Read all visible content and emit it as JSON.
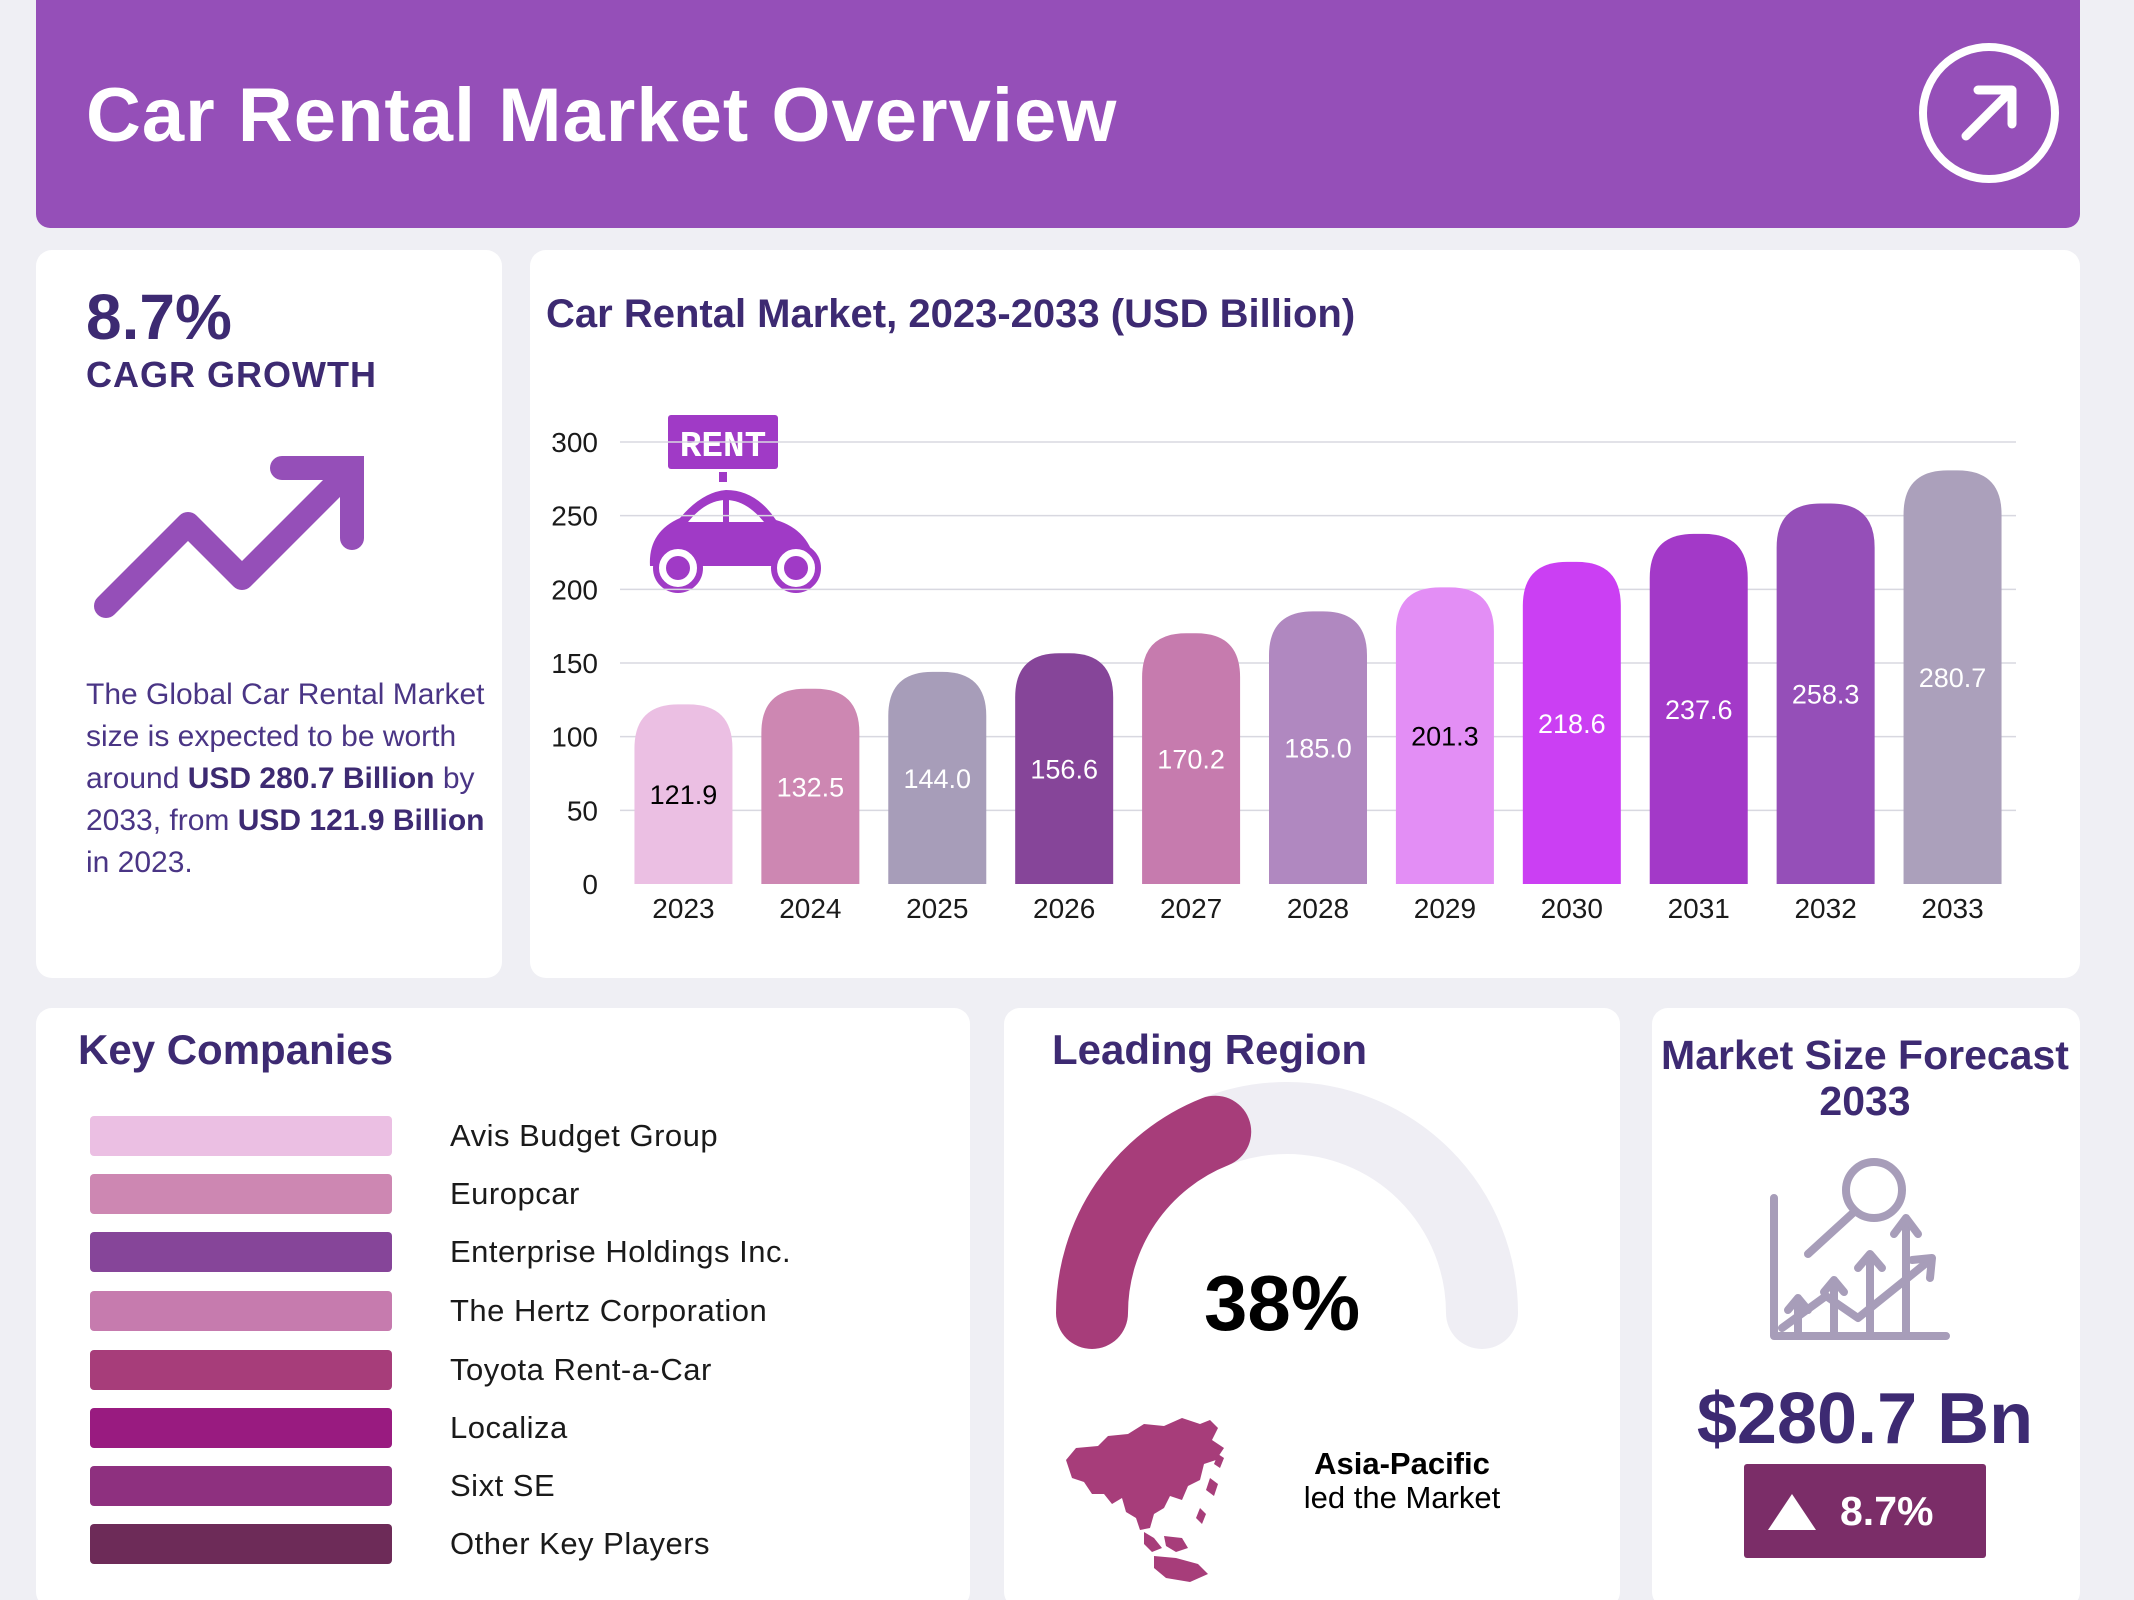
{
  "header": {
    "title": "Car Rental Market Overview",
    "icon": "arrow-up-right-icon"
  },
  "cagr": {
    "value": "8.7%",
    "label": "CAGR GROWTH",
    "icon": "trend-up-arrow-icon",
    "text_1": "The Global Car Rental Market size is expected to be worth around ",
    "text_bold_1": "USD 280.7 Billion",
    "text_2": " by 2033, from ",
    "text_bold_2": "USD 121.9 Billion",
    "text_3": " in 2023."
  },
  "chart_data": {
    "type": "bar",
    "title": "Car Rental Market, 2023-2033 (USD Billion)",
    "categories": [
      "2023",
      "2024",
      "2025",
      "2026",
      "2027",
      "2028",
      "2029",
      "2030",
      "2031",
      "2032",
      "2033"
    ],
    "values": [
      121.9,
      132.5,
      144.0,
      156.6,
      170.2,
      185.0,
      201.3,
      218.6,
      237.6,
      258.3,
      280.7
    ],
    "value_labels": [
      "121.9",
      "132.5",
      "144.0",
      "156.6",
      "170.2",
      "185.0",
      "201.3",
      "218.6",
      "237.6",
      "258.3",
      "280.7"
    ],
    "bar_colors": [
      "#ebbfe3",
      "#cd87b2",
      "#a79db9",
      "#864599",
      "#c67bae",
      "#b088c0",
      "#e38ef5",
      "#cb3ff3",
      "#a339c8",
      "#954fb8",
      "#aba0bb"
    ],
    "label_colors": [
      "#000000",
      "#ffffff",
      "#ffffff",
      "#ffffff",
      "#ffffff",
      "#ffffff",
      "#000000",
      "#ffffff",
      "#ffffff",
      "#ffffff",
      "#ffffff"
    ],
    "yticks": [
      "0",
      "50",
      "100",
      "150",
      "200",
      "250",
      "300"
    ],
    "ylim": [
      0,
      300
    ],
    "xlabel": "",
    "ylabel": "",
    "grid": true,
    "legend": "none",
    "decoration": {
      "icon": "rent-car-icon",
      "sign_text": "RENT"
    }
  },
  "companies": {
    "title": "Key Companies",
    "items": [
      {
        "name": "Avis Budget Group",
        "color": "#ebbfe3"
      },
      {
        "name": "Europcar",
        "color": "#cd87b2"
      },
      {
        "name": "Enterprise Holdings Inc.",
        "color": "#864599"
      },
      {
        "name": "The Hertz Corporation",
        "color": "#c67bae"
      },
      {
        "name": "Toyota Rent-a-Car",
        "color": "#a73d7a"
      },
      {
        "name": "Localiza",
        "color": "#991b80"
      },
      {
        "name": "Sixt SE",
        "color": "#8e307f"
      },
      {
        "name": "Other Key Players",
        "color": "#6d2b58"
      }
    ]
  },
  "region": {
    "title": "Leading Region",
    "percent": "38%",
    "share": 0.38,
    "gauge_color": "#a73d7a",
    "track_color": "#efeef4",
    "name": "Asia-Pacific",
    "description": "led the Market",
    "map_icon": "asia-pacific-map-icon"
  },
  "forecast": {
    "title": "Market Size Forecast 2033",
    "icon": "growth-chart-magnifier-icon",
    "value": "$280.7 Bn",
    "growth": "8.7%",
    "growth_icon": "triangle-up-icon"
  }
}
